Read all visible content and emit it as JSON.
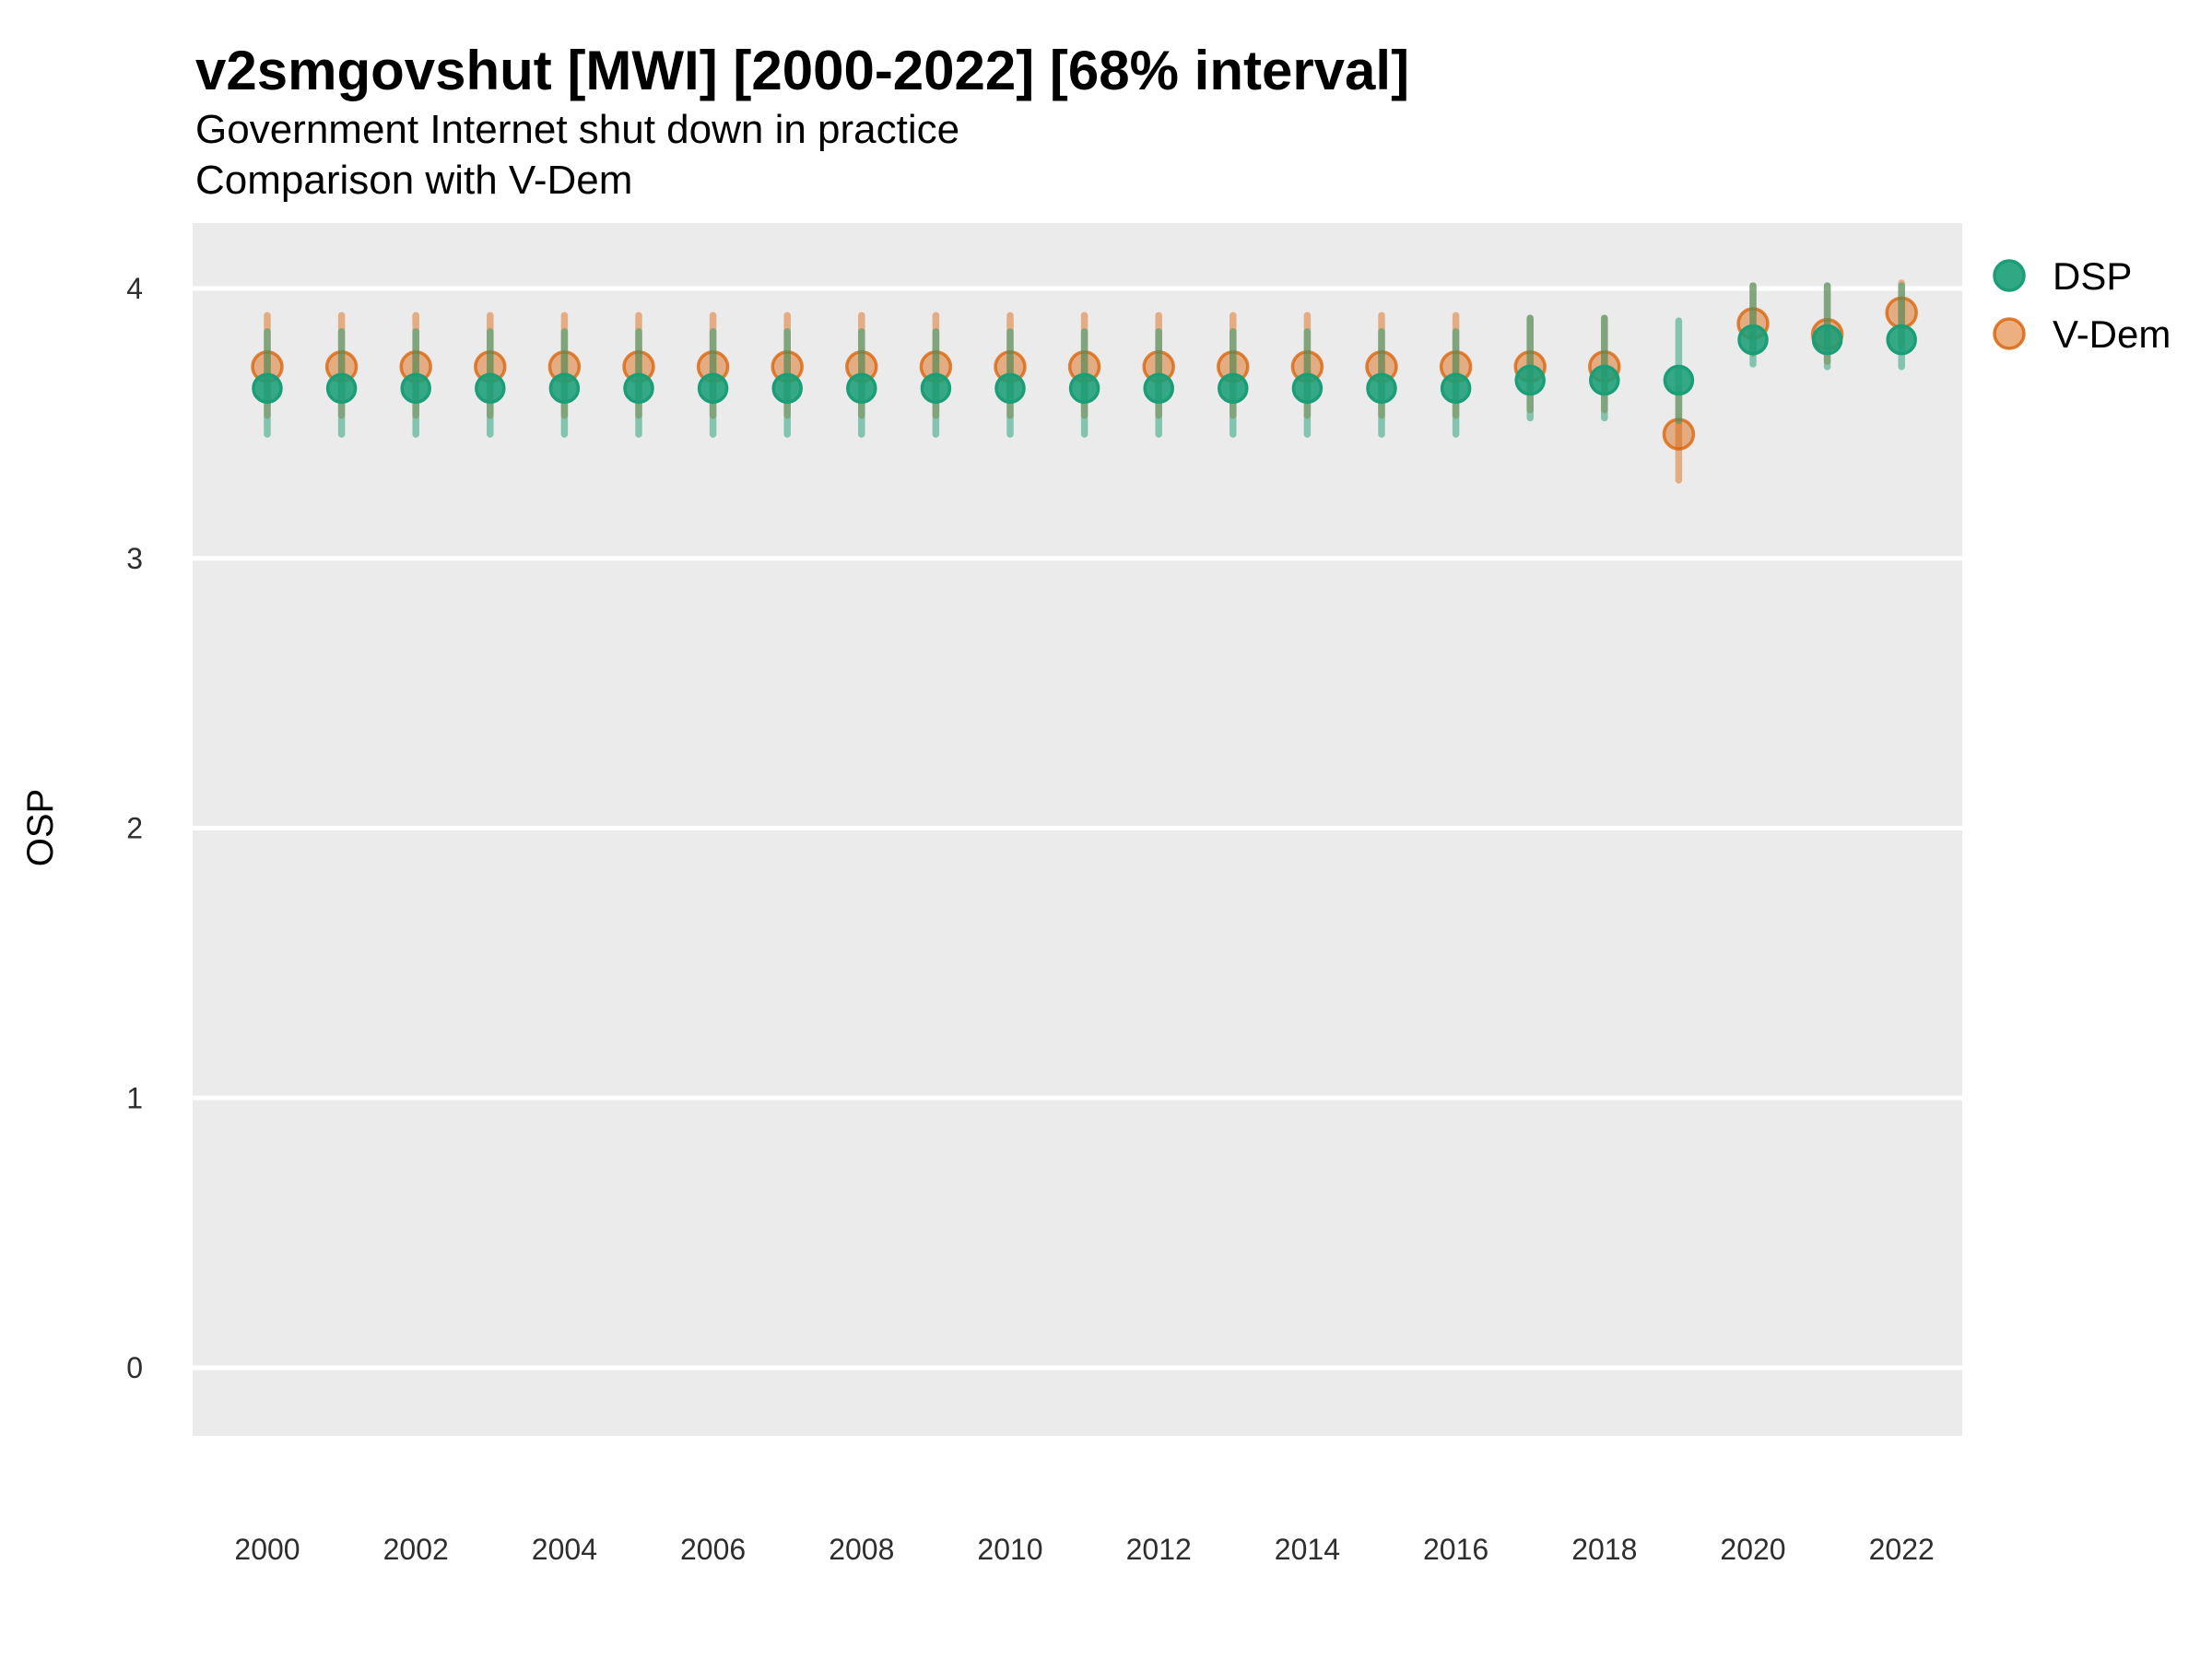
{
  "header": {
    "title": "v2smgovshut [MWI] [2000-2022] [68% interval]",
    "subtitle1": "Government Internet shut down in practice",
    "subtitle2": "Comparison with V-Dem"
  },
  "axes": {
    "y_title": "OSP",
    "y_ticks": [
      0,
      1,
      2,
      3,
      4
    ],
    "x_ticks": [
      2000,
      2002,
      2004,
      2006,
      2008,
      2010,
      2012,
      2014,
      2016,
      2018,
      2020,
      2022
    ]
  },
  "legend": {
    "dsp": "DSP",
    "vdem": "V-Dem"
  },
  "colors": {
    "dsp": "#1B9E77",
    "vdem": "#D95F02",
    "panel_background": "#EBEBEB",
    "gridline": "#FFFFFF"
  },
  "chart_data": {
    "type": "scatter",
    "subtype": "pointrange-comparison",
    "title": "v2smgovshut [MWI] [2000-2022] [68% interval]",
    "subtitle": "Government Internet shut down in practice",
    "comparison_note": "Comparison with V-Dem",
    "interval": "68%",
    "country": "MWI",
    "xlabel": "",
    "ylabel": "OSP",
    "ylim": [
      -0.25,
      4.25
    ],
    "yticks": [
      0,
      1,
      2,
      3,
      4
    ],
    "xticks": [
      2000,
      2002,
      2004,
      2006,
      2008,
      2010,
      2012,
      2014,
      2016,
      2018,
      2020,
      2022
    ],
    "grid": "on",
    "legend_position": "right",
    "series": [
      {
        "name": "V-Dem",
        "color": "#D95F02",
        "points": [
          {
            "year": 2000,
            "est": 3.71,
            "lo": 3.53,
            "hi": 3.9
          },
          {
            "year": 2001,
            "est": 3.71,
            "lo": 3.53,
            "hi": 3.9
          },
          {
            "year": 2002,
            "est": 3.71,
            "lo": 3.53,
            "hi": 3.9
          },
          {
            "year": 2003,
            "est": 3.71,
            "lo": 3.53,
            "hi": 3.9
          },
          {
            "year": 2004,
            "est": 3.71,
            "lo": 3.53,
            "hi": 3.9
          },
          {
            "year": 2005,
            "est": 3.71,
            "lo": 3.53,
            "hi": 3.9
          },
          {
            "year": 2006,
            "est": 3.71,
            "lo": 3.53,
            "hi": 3.9
          },
          {
            "year": 2007,
            "est": 3.71,
            "lo": 3.53,
            "hi": 3.9
          },
          {
            "year": 2008,
            "est": 3.71,
            "lo": 3.53,
            "hi": 3.9
          },
          {
            "year": 2009,
            "est": 3.71,
            "lo": 3.53,
            "hi": 3.9
          },
          {
            "year": 2010,
            "est": 3.71,
            "lo": 3.53,
            "hi": 3.9
          },
          {
            "year": 2011,
            "est": 3.71,
            "lo": 3.53,
            "hi": 3.9
          },
          {
            "year": 2012,
            "est": 3.71,
            "lo": 3.53,
            "hi": 3.9
          },
          {
            "year": 2013,
            "est": 3.71,
            "lo": 3.53,
            "hi": 3.9
          },
          {
            "year": 2014,
            "est": 3.71,
            "lo": 3.53,
            "hi": 3.9
          },
          {
            "year": 2015,
            "est": 3.71,
            "lo": 3.53,
            "hi": 3.9
          },
          {
            "year": 2016,
            "est": 3.71,
            "lo": 3.53,
            "hi": 3.9
          },
          {
            "year": 2017,
            "est": 3.71,
            "lo": 3.55,
            "hi": 3.89
          },
          {
            "year": 2018,
            "est": 3.71,
            "lo": 3.55,
            "hi": 3.89
          },
          {
            "year": 2019,
            "est": 3.46,
            "lo": 3.29,
            "hi": 3.63
          },
          {
            "year": 2020,
            "est": 3.87,
            "lo": 3.76,
            "hi": 4.01
          },
          {
            "year": 2021,
            "est": 3.83,
            "lo": 3.73,
            "hi": 4.01
          },
          {
            "year": 2022,
            "est": 3.91,
            "lo": 3.79,
            "hi": 4.02
          }
        ]
      },
      {
        "name": "DSP",
        "color": "#1B9E77",
        "points": [
          {
            "year": 2000,
            "est": 3.63,
            "lo": 3.46,
            "hi": 3.84
          },
          {
            "year": 2001,
            "est": 3.63,
            "lo": 3.46,
            "hi": 3.84
          },
          {
            "year": 2002,
            "est": 3.63,
            "lo": 3.46,
            "hi": 3.84
          },
          {
            "year": 2003,
            "est": 3.63,
            "lo": 3.46,
            "hi": 3.84
          },
          {
            "year": 2004,
            "est": 3.63,
            "lo": 3.46,
            "hi": 3.84
          },
          {
            "year": 2005,
            "est": 3.63,
            "lo": 3.46,
            "hi": 3.84
          },
          {
            "year": 2006,
            "est": 3.63,
            "lo": 3.46,
            "hi": 3.84
          },
          {
            "year": 2007,
            "est": 3.63,
            "lo": 3.46,
            "hi": 3.84
          },
          {
            "year": 2008,
            "est": 3.63,
            "lo": 3.46,
            "hi": 3.84
          },
          {
            "year": 2009,
            "est": 3.63,
            "lo": 3.46,
            "hi": 3.84
          },
          {
            "year": 2010,
            "est": 3.63,
            "lo": 3.46,
            "hi": 3.84
          },
          {
            "year": 2011,
            "est": 3.63,
            "lo": 3.46,
            "hi": 3.84
          },
          {
            "year": 2012,
            "est": 3.63,
            "lo": 3.46,
            "hi": 3.84
          },
          {
            "year": 2013,
            "est": 3.63,
            "lo": 3.46,
            "hi": 3.84
          },
          {
            "year": 2014,
            "est": 3.63,
            "lo": 3.46,
            "hi": 3.84
          },
          {
            "year": 2015,
            "est": 3.63,
            "lo": 3.46,
            "hi": 3.84
          },
          {
            "year": 2016,
            "est": 3.63,
            "lo": 3.46,
            "hi": 3.84
          },
          {
            "year": 2017,
            "est": 3.66,
            "lo": 3.52,
            "hi": 3.89
          },
          {
            "year": 2018,
            "est": 3.66,
            "lo": 3.52,
            "hi": 3.89
          },
          {
            "year": 2019,
            "est": 3.66,
            "lo": 3.51,
            "hi": 3.88
          },
          {
            "year": 2020,
            "est": 3.81,
            "lo": 3.72,
            "hi": 4.01
          },
          {
            "year": 2021,
            "est": 3.81,
            "lo": 3.71,
            "hi": 4.01
          },
          {
            "year": 2022,
            "est": 3.81,
            "lo": 3.71,
            "hi": 4.01
          }
        ]
      }
    ]
  }
}
